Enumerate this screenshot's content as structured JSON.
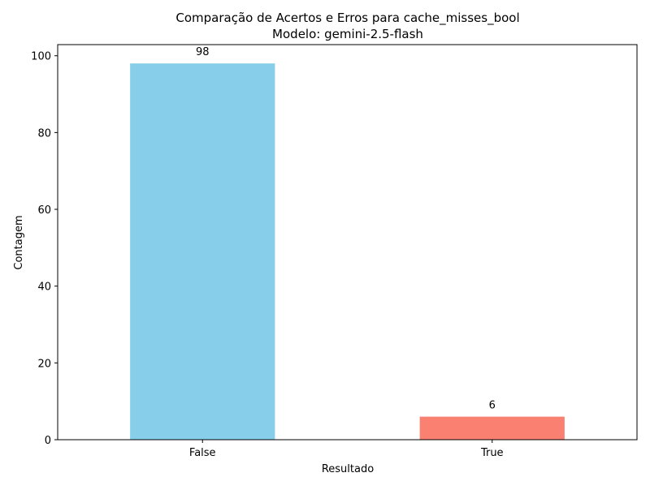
{
  "chart_data": {
    "type": "bar",
    "title": "Comparação de Acertos e Erros para cache_misses_bool",
    "subtitle": "Modelo: gemini-2.5-flash",
    "xlabel": "Resultado",
    "ylabel": "Contagem",
    "categories": [
      "False",
      "True"
    ],
    "values": [
      98,
      6
    ],
    "data_labels": [
      "98",
      "6"
    ],
    "bar_colors": [
      "#87CEEB",
      "#FA8072"
    ],
    "ylim": [
      0,
      102.9
    ],
    "yticks": [
      0,
      20,
      40,
      60,
      80,
      100
    ],
    "ytick_labels": [
      "0",
      "20",
      "40",
      "60",
      "80",
      "100"
    ],
    "grid": false,
    "legend": "none"
  }
}
